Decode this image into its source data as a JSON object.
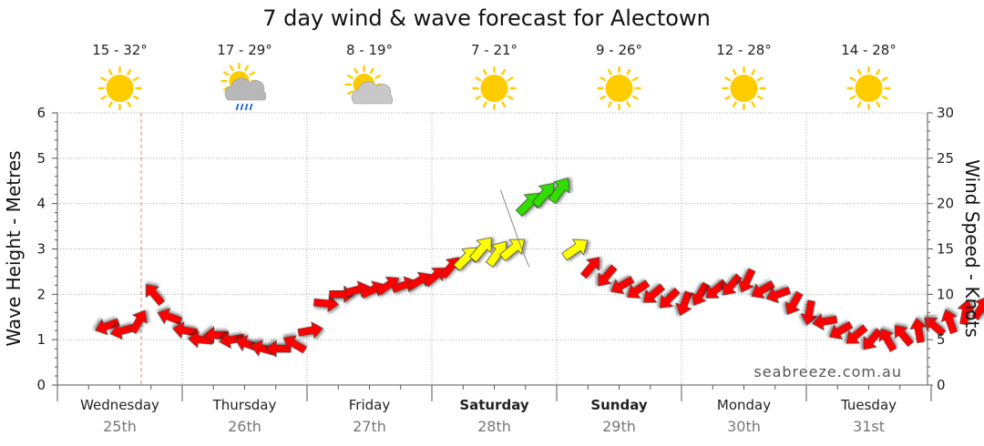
{
  "chart_data": {
    "type": "line",
    "title": "7 day wind & wave forecast for Alectown",
    "ylabel_left": "Wave Height - Metres",
    "ylabel_right": "Wind Speed - Knots",
    "ylim_left": [
      0,
      6
    ],
    "ylim_right": [
      0,
      30
    ],
    "yticks_left": [
      "0",
      "1",
      "2",
      "3",
      "4",
      "5",
      "6"
    ],
    "yticks_right": [
      "0",
      "5",
      "10",
      "15",
      "20",
      "25",
      "30"
    ],
    "grid": true,
    "days": [
      {
        "name": "Wednesday",
        "date": "25th",
        "bold": false,
        "temp": "15 - 32°",
        "weather": "sunny-icon"
      },
      {
        "name": "Thursday",
        "date": "26th",
        "bold": false,
        "temp": "17 - 29°",
        "weather": "rain-cloud-icon"
      },
      {
        "name": "Friday",
        "date": "27th",
        "bold": false,
        "temp": "8 - 19°",
        "weather": "partly-cloudy-icon"
      },
      {
        "name": "Saturday",
        "date": "28th",
        "bold": true,
        "temp": "7 - 21°",
        "weather": "sunny-icon"
      },
      {
        "name": "Sunday",
        "date": "29th",
        "bold": true,
        "temp": "9 - 26°",
        "weather": "sunny-icon"
      },
      {
        "name": "Monday",
        "date": "30th",
        "bold": false,
        "temp": "12 - 28°",
        "weather": "sunny-icon"
      },
      {
        "name": "Tuesday",
        "date": "31st",
        "bold": false,
        "temp": "14 - 28°",
        "weather": "sunny-icon"
      }
    ],
    "series": [
      {
        "name": "Wind Speed",
        "unit": "knots",
        "x_start": 0.4,
        "x_step": 0.125,
        "values": [
          6.5,
          6,
          7,
          10,
          7.5,
          6,
          5,
          5.5,
          5,
          4.5,
          4,
          4,
          4.5,
          6,
          9,
          10,
          10.5,
          10.5,
          11,
          11,
          11.5,
          12,
          13,
          14,
          15,
          14.5,
          15,
          20,
          21,
          21.5,
          15,
          13,
          12,
          11,
          10.5,
          10,
          9.5,
          9,
          10,
          10.5,
          11,
          11.5,
          10.5,
          10,
          9,
          8,
          7,
          6,
          5.5,
          5,
          5,
          5.5,
          6,
          6.5,
          7,
          8,
          8.5,
          8,
          7.5,
          7.5,
          8,
          8.5,
          8.5,
          9,
          9.5,
          10,
          8,
          7,
          6.5,
          7,
          8,
          8.5,
          9,
          9.5,
          10,
          10.5,
          11,
          11,
          11.5,
          12,
          10,
          8,
          7,
          6.5,
          7,
          7.5,
          8,
          8.5,
          9
        ],
        "color_scale": {
          "low": "#ff0000",
          "mid": "#ffff00",
          "high": "#33dd00"
        }
      }
    ]
  },
  "watermark": "seabreeze.com.au",
  "colors": {
    "wind_low": "#ff0000",
    "wind_mid": "#ffff00",
    "wind_high": "#33dd00",
    "sun": "#ffcc00",
    "now_marker": "#e88080"
  }
}
